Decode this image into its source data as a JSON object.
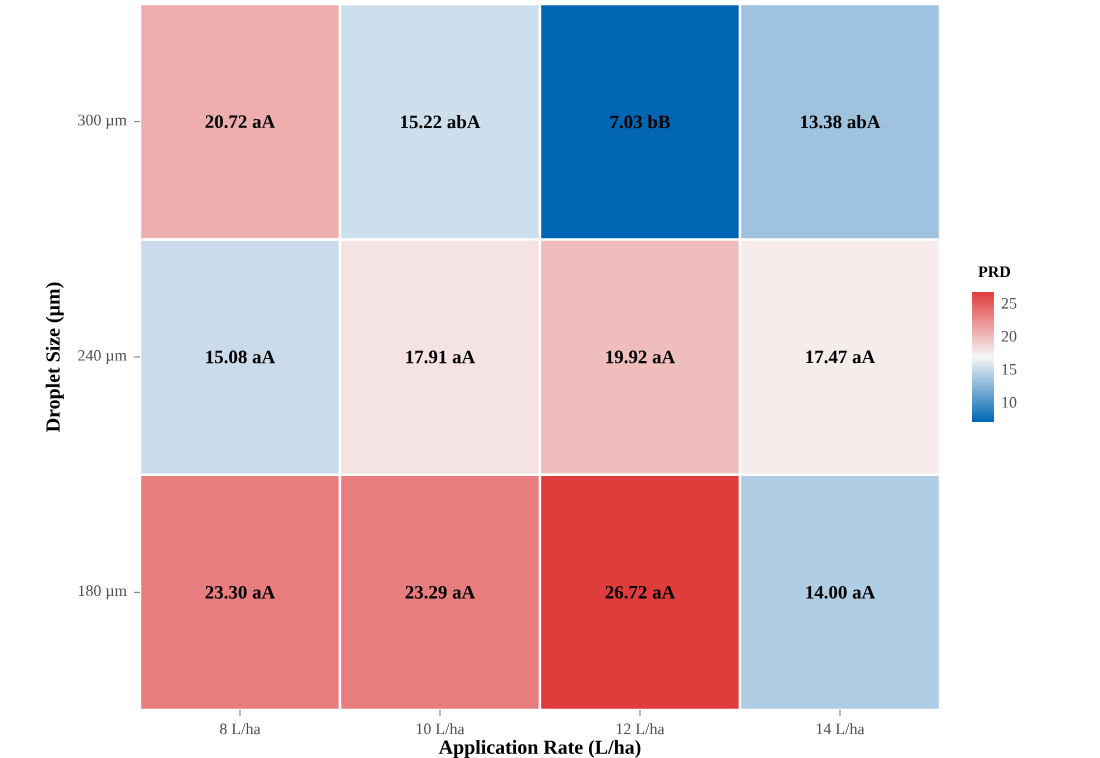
{
  "chart_data": {
    "type": "heatmap",
    "xlabel": "Application Rate (L/ha)",
    "ylabel": "Droplet Size (µm)",
    "clabel": "PRD",
    "categories": [
      "8 L/ha",
      "10 L/ha",
      "12 L/ha",
      "14 L/ha"
    ],
    "y_categories": [
      "300 µm",
      "240 µm",
      "180 µm"
    ],
    "cells": [
      [
        20.72,
        15.22,
        7.03,
        13.38
      ],
      [
        15.08,
        17.91,
        19.92,
        17.47
      ],
      [
        23.3,
        23.29,
        26.72,
        14.0
      ]
    ],
    "cell_labels": [
      [
        "20.72 aA",
        "15.22 abA",
        "7.03 bB",
        "13.38 abA"
      ],
      [
        "15.08 aA",
        "17.91 aA",
        "19.92 aA",
        "17.47 aA"
      ],
      [
        "23.30 aA",
        "23.29 aA",
        "26.72 aA",
        "14.00 aA"
      ]
    ],
    "clim": [
      7.03,
      26.72
    ],
    "cticks": [
      10,
      15,
      20,
      25
    ]
  }
}
